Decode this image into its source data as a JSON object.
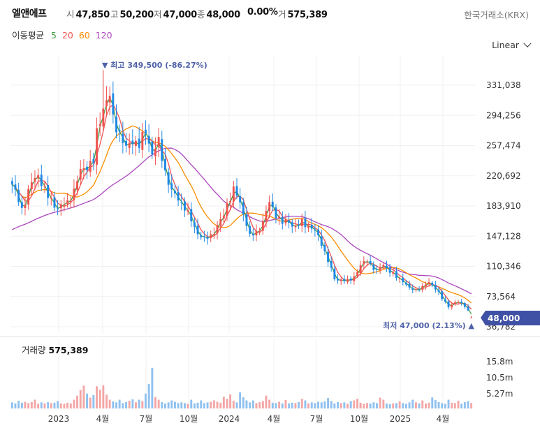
{
  "header": {
    "name": "엘앤에프",
    "open_label": "시",
    "open": "47,850",
    "high_label": "고",
    "high": "50,200",
    "low_label": "저",
    "low": "47,000",
    "close_label": "종",
    "close": "48,000",
    "change": "0.00%",
    "volume_label": "거",
    "volume": "575,389",
    "exchange": "한국거래소(KRX)"
  },
  "ma_legend": {
    "label": "이동평균",
    "periods": [
      "5",
      "20",
      "60",
      "120"
    ]
  },
  "scale_button": "Linear",
  "colors": {
    "up": "#ef5350",
    "down": "#1e88e5",
    "ma5": "#43a047",
    "ma20": "#ef5350",
    "ma60": "#fb8c00",
    "ma120": "#ab47bc",
    "price_badge": "#3f51a5",
    "annotation": "#5063a8"
  },
  "annotations": {
    "high": "▼ 최고 349,500 (-86.27%)",
    "low": "최저 47,000 (2.13%) ▲",
    "current_price": "48,000"
  },
  "volume_panel": {
    "label": "거래량",
    "value": "575,389"
  },
  "chart_data": {
    "type": "candlestick",
    "x_tick_labels": [
      "2023",
      "4월",
      "7월",
      "10월",
      "2024",
      "4월",
      "7월",
      "10월",
      "2025",
      "4월"
    ],
    "y_tick_labels": [
      "331,038",
      "294,256",
      "257,474",
      "220,692",
      "183,910",
      "147,128",
      "110,346",
      "73,564",
      "36,782"
    ],
    "ylim": [
      36782,
      350000
    ],
    "volume_tick_labels": [
      "15.8m",
      "10.5m",
      "5.27m"
    ],
    "volume_ylim": [
      0,
      18000000
    ],
    "weekly_close_anchors": [
      [
        0,
        210000
      ],
      [
        3,
        180000
      ],
      [
        6,
        212000
      ],
      [
        8,
        222000
      ],
      [
        11,
        195000
      ],
      [
        14,
        181000
      ],
      [
        17,
        188000
      ],
      [
        19,
        203000
      ],
      [
        21,
        226000
      ],
      [
        23,
        233000
      ],
      [
        25,
        238000
      ],
      [
        26,
        272000
      ],
      [
        28,
        305000
      ],
      [
        30,
        318000
      ],
      [
        31,
        289000
      ],
      [
        33,
        273000
      ],
      [
        35,
        253000
      ],
      [
        37,
        265000
      ],
      [
        39,
        258000
      ],
      [
        41,
        275000
      ],
      [
        43,
        248000
      ],
      [
        45,
        261000
      ],
      [
        47,
        226000
      ],
      [
        49,
        201000
      ],
      [
        51,
        193000
      ],
      [
        53,
        182000
      ],
      [
        55,
        166000
      ],
      [
        57,
        151000
      ],
      [
        59,
        143000
      ],
      [
        61,
        148000
      ],
      [
        63,
        159000
      ],
      [
        65,
        173000
      ],
      [
        66,
        187000
      ],
      [
        68,
        203000
      ],
      [
        69,
        197000
      ],
      [
        71,
        176000
      ],
      [
        73,
        147000
      ],
      [
        75,
        151000
      ],
      [
        77,
        165000
      ],
      [
        79,
        188000
      ],
      [
        81,
        174000
      ],
      [
        83,
        163000
      ],
      [
        85,
        165000
      ],
      [
        87,
        158000
      ],
      [
        89,
        164000
      ],
      [
        91,
        160000
      ],
      [
        93,
        153000
      ],
      [
        95,
        139000
      ],
      [
        97,
        117000
      ],
      [
        99,
        95000
      ],
      [
        101,
        94000
      ],
      [
        103,
        92000
      ],
      [
        105,
        98000
      ],
      [
        107,
        111000
      ],
      [
        109,
        118000
      ],
      [
        111,
        108000
      ],
      [
        112,
        104000
      ],
      [
        114,
        113000
      ],
      [
        116,
        104000
      ],
      [
        118,
        97000
      ],
      [
        120,
        93000
      ],
      [
        122,
        83000
      ],
      [
        124,
        82000
      ],
      [
        126,
        85000
      ],
      [
        128,
        91000
      ],
      [
        130,
        84000
      ],
      [
        132,
        71000
      ],
      [
        134,
        62000
      ],
      [
        135,
        64000
      ],
      [
        137,
        67000
      ],
      [
        139,
        63000
      ],
      [
        140,
        56000
      ],
      [
        141,
        48000
      ]
    ],
    "weekly_volume_m": [
      1.8,
      1.5,
      2.3,
      1.7,
      2.0,
      1.6,
      1.9,
      2.6,
      1.4,
      1.8,
      1.5,
      1.9,
      1.6,
      1.7,
      2.2,
      1.5,
      1.4,
      1.7,
      1.5,
      2.6,
      3.8,
      5.5,
      6.8,
      4.4,
      3.2,
      4.0,
      6.6,
      5.6,
      6.9,
      4.1,
      2.6,
      2.1,
      1.8,
      2.6,
      1.6,
      1.9,
      2.3,
      2.7,
      1.8,
      2.6,
      2.2,
      4.4,
      7.3,
      12.1,
      3.4,
      2.6,
      1.9,
      1.5,
      1.8,
      2.4,
      2.0,
      1.6,
      1.8,
      1.6,
      1.4,
      2.6,
      1.5,
      1.7,
      2.4,
      1.6,
      1.8,
      2.0,
      2.4,
      2.0,
      1.7,
      3.5,
      2.9,
      4.2,
      2.3,
      1.8,
      4.8,
      3.3,
      2.4,
      1.8,
      2.4,
      1.6,
      1.9,
      2.2,
      3.8,
      2.6,
      1.7,
      1.6,
      2.0,
      1.5,
      2.5,
      1.5,
      1.7,
      1.6,
      1.9,
      2.9,
      2.4,
      1.5,
      1.8,
      1.6,
      2.0,
      1.8,
      2.1,
      3.1,
      2.2,
      1.5,
      1.9,
      1.6,
      1.8,
      1.4,
      2.2,
      2.4,
      2.9,
      1.7,
      1.4,
      1.6,
      1.5,
      1.8,
      1.6,
      3.2,
      2.6,
      1.5,
      1.3,
      1.5,
      1.6,
      2.1,
      1.6,
      1.4,
      1.8,
      2.6,
      1.8,
      1.5,
      2.4,
      1.5,
      1.7,
      3.3,
      2.5,
      1.9,
      1.6,
      1.4,
      2.6,
      1.7,
      1.6,
      2.3,
      1.4,
      1.9,
      2.2,
      1.6
    ]
  }
}
